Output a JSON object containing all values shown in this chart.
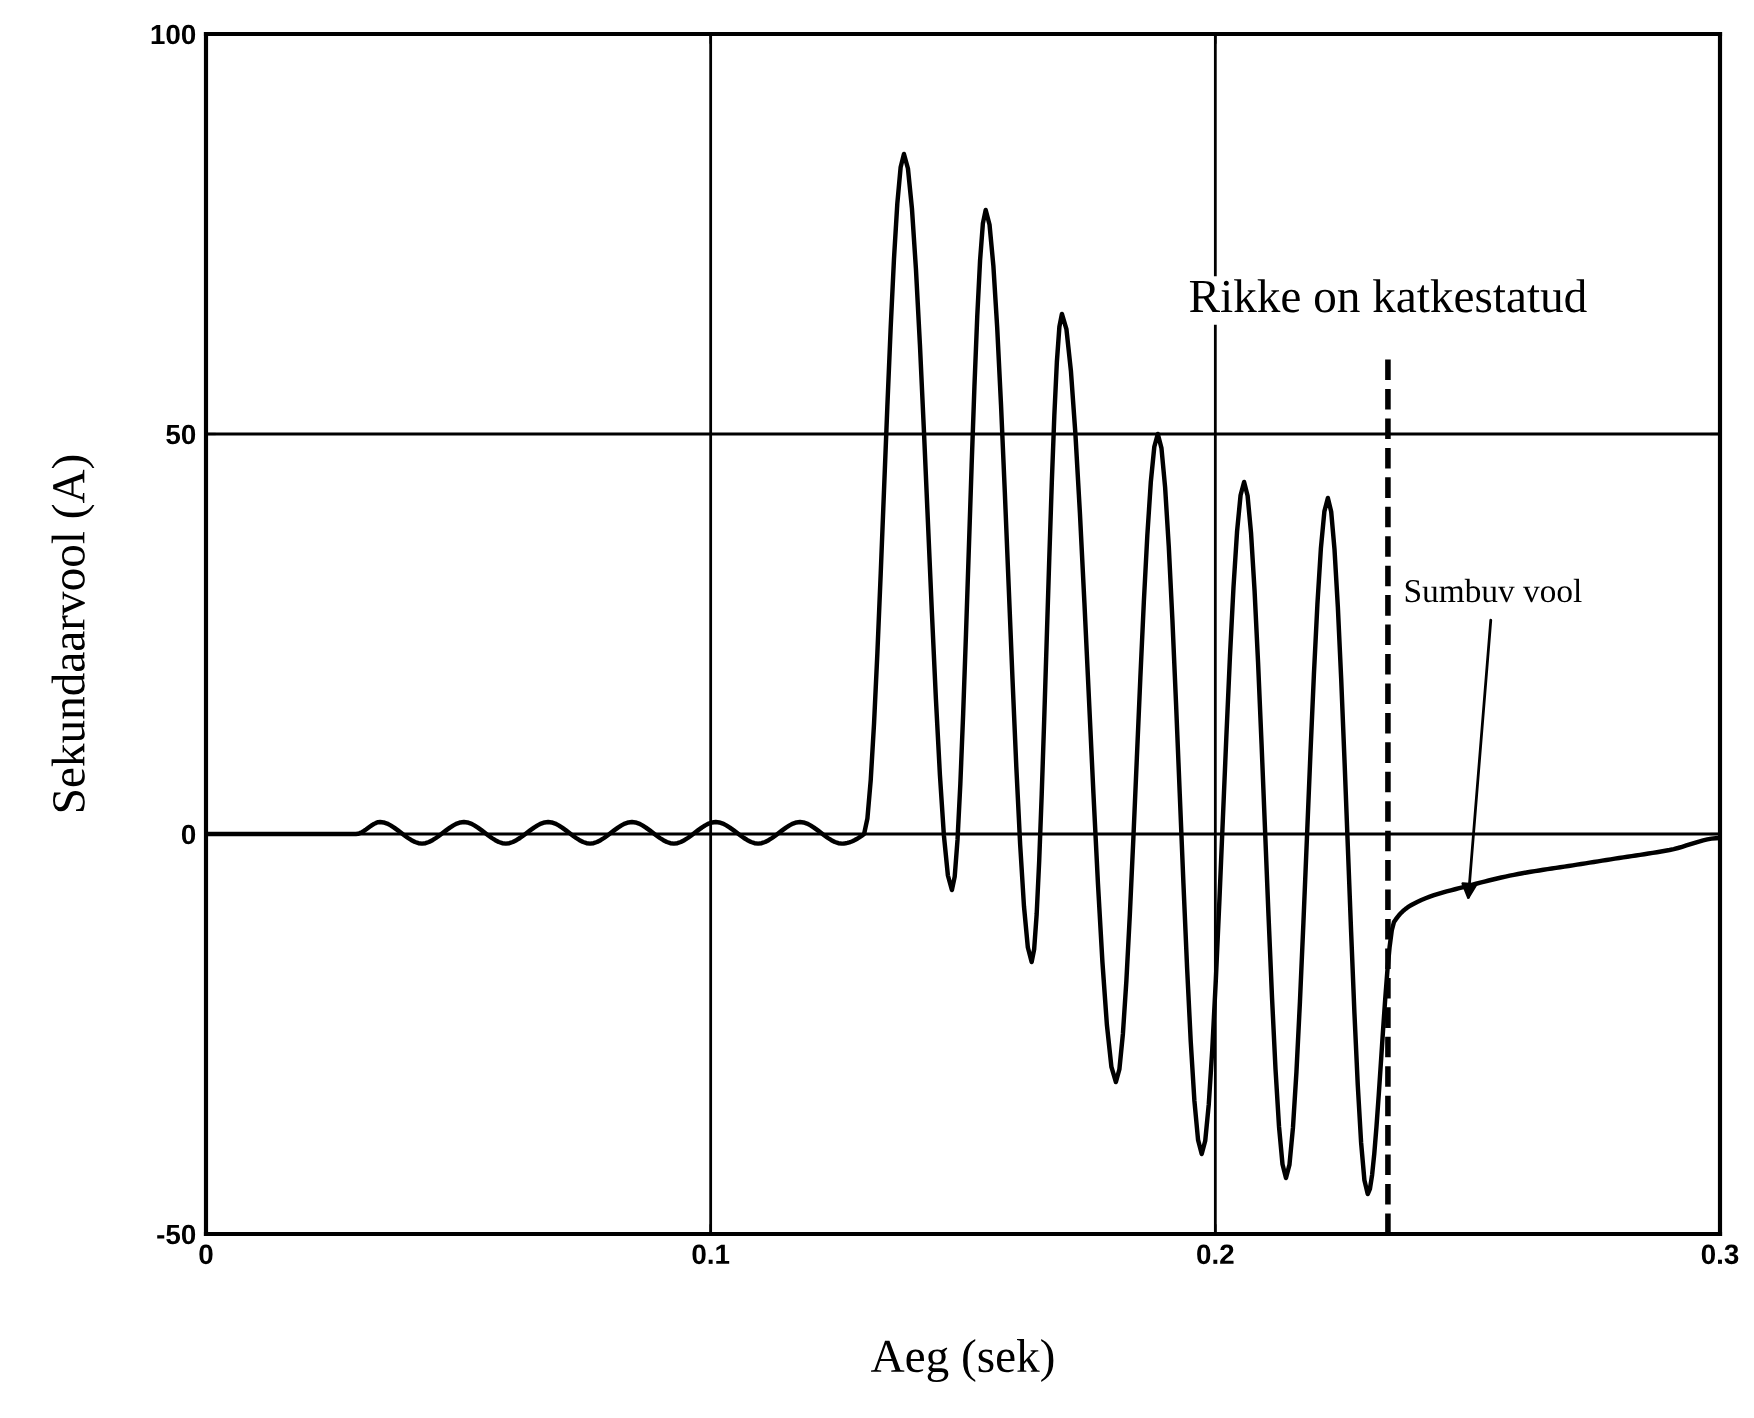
{
  "chart_data": {
    "type": "line",
    "xlabel": "Aeg (sek)",
    "ylabel": "Sekundaarvool (A)",
    "xlim": [
      0,
      0.3
    ],
    "ylim": [
      -50,
      100
    ],
    "xticks": [
      0,
      0.1,
      0.2,
      0.3
    ],
    "yticks": [
      -50,
      0,
      50,
      100
    ],
    "grid": true,
    "series": [
      {
        "color": "#000000",
        "x": [
          0,
          0.0297,
          0.0345,
          0.0428,
          0.0511,
          0.0594,
          0.0678,
          0.0761,
          0.0844,
          0.0927,
          0.101,
          0.1094,
          0.1177,
          0.126,
          0.1304,
          0.1383,
          0.1478,
          0.1545,
          0.1636,
          0.1696,
          0.1803,
          0.1886,
          0.1973,
          0.2057,
          0.214,
          0.2223,
          0.2302,
          0.2354,
          0.24,
          0.25,
          0.26,
          0.27,
          0.28,
          0.29,
          0.3
        ],
        "values": [
          0,
          0,
          1.5,
          -1.2,
          1.5,
          -1.2,
          1.5,
          -1.2,
          1.5,
          -1.2,
          1.5,
          -1.2,
          1.5,
          -1.2,
          0,
          85,
          -7,
          78,
          -16,
          65,
          -31,
          50,
          -40,
          44,
          -43,
          42,
          -45,
          -11,
          -8.5,
          -6.5,
          -5,
          -4,
          -3,
          -2,
          -0.5
        ]
      }
    ],
    "ref_lines": [
      {
        "axis": "x",
        "value": 0.2342,
        "label": "Rikke on katkestatud",
        "line_style": "dashed",
        "color": "#000000"
      }
    ],
    "annotations": [
      {
        "text": "Sumbuv vool",
        "x": 0.25,
        "y": -9
      }
    ]
  }
}
